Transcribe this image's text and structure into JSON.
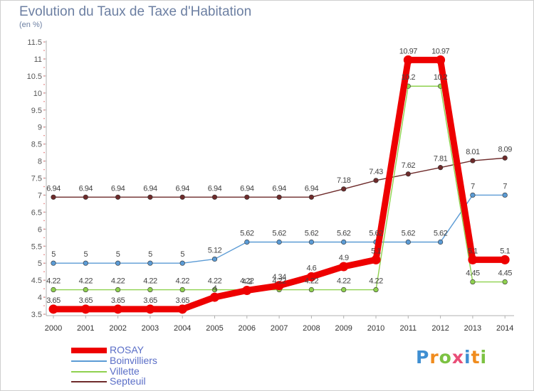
{
  "title": "Evolution du Taux de Taxe d'Habitation",
  "subtitle": "(en %)",
  "logo": "Proxiti",
  "chart_data": {
    "type": "line",
    "x": [
      "2000",
      "2001",
      "2002",
      "2003",
      "2004",
      "2005",
      "2006",
      "2007",
      "2008",
      "2009",
      "2010",
      "2011",
      "2012",
      "2013",
      "2014"
    ],
    "ylim": [
      3.5,
      11.5
    ],
    "yticks": [
      "3.5",
      "4",
      "4.5",
      "5",
      "5.5",
      "6",
      "6.5",
      "7",
      "7.5",
      "8",
      "8.5",
      "9",
      "9.5",
      "10",
      "10.5",
      "11",
      "11.5"
    ],
    "grid": false,
    "legend_position": "bottom-left",
    "series": [
      {
        "name": "Septeuil",
        "color": "#6e2b2b",
        "values": [
          6.94,
          6.94,
          6.94,
          6.94,
          6.94,
          6.94,
          6.94,
          6.94,
          6.94,
          7.18,
          7.43,
          7.62,
          7.81,
          8.01,
          8.09
        ],
        "labels": [
          "6.94",
          "6.94",
          "6.94",
          "6.94",
          "6.94",
          "6.94",
          "6.94",
          "6.94",
          "6.94",
          "7.18",
          "7.43",
          "7.62",
          "7.81",
          "8.01",
          "8.09"
        ]
      },
      {
        "name": "Boinvilliers",
        "color": "#5b9bd5",
        "values": [
          5,
          5,
          5,
          5,
          5,
          5.12,
          5.62,
          5.62,
          5.62,
          5.62,
          5.62,
          5.62,
          5.62,
          7,
          7
        ],
        "labels": [
          "5",
          "5",
          "5",
          "5",
          "5",
          "5.12",
          "5.62",
          "5.62",
          "5.62",
          "5.62",
          "5.62",
          "5.62",
          "5.62",
          "7",
          "7"
        ]
      },
      {
        "name": "Villette",
        "color": "#8fd14f",
        "values": [
          4.22,
          4.22,
          4.22,
          4.22,
          4.22,
          4.22,
          4.22,
          4.22,
          4.22,
          4.22,
          4.22,
          10.2,
          10.2,
          4.45,
          4.45
        ],
        "labels": [
          "4.22",
          "4.22",
          "4.22",
          "4.22",
          "4.22",
          "4.22",
          "4.22",
          "4.22",
          "4.22",
          "4.22",
          "4.22",
          "10.2",
          "10.2",
          "4.45",
          "4.45"
        ]
      },
      {
        "name": "ROSAY",
        "color": "#ee0000",
        "values": [
          3.65,
          3.65,
          3.65,
          3.65,
          3.65,
          4,
          4.2,
          4.34,
          4.6,
          4.9,
          5.1,
          10.97,
          10.97,
          5.1,
          5.1
        ],
        "labels": [
          "3.65",
          "3.65",
          "3.65",
          "3.65",
          "3.65",
          "4",
          "4.2",
          "4.34",
          "4.6",
          "4.9",
          "5.1",
          "10.97",
          "10.97",
          "5.1",
          "5.1"
        ]
      }
    ],
    "legend": [
      "ROSAY",
      "Boinvilliers",
      "Villette",
      "Septeuil"
    ]
  }
}
